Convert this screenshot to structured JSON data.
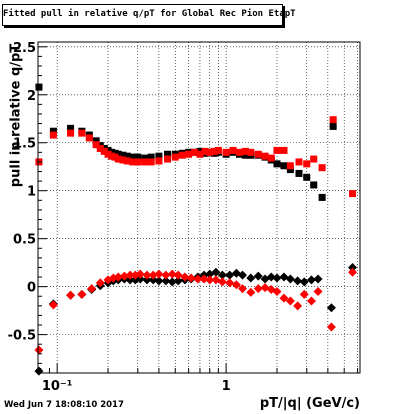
{
  "title": "Fitted pull in relative q/pT for Global Rec Pion EtapT",
  "footer": "Wed Jun  7 18:08:10 2017",
  "chart_data": {
    "type": "scatter",
    "title": "Fitted pull in relative q/pT for Global Rec Pion EtapT",
    "xlabel": "pT/|q| (GeV/c)",
    "ylabel": "pull in relative q/pT",
    "xscale": "log",
    "xlim": [
      0.077,
      6.2
    ],
    "ylim": [
      -0.9,
      2.55
    ],
    "grid": true,
    "xtick_labels": [
      "10⁻¹",
      "1"
    ],
    "ytick_labels": [
      "-0.5",
      "0",
      "0.5",
      "1",
      "1.5",
      "2",
      "2.5"
    ],
    "series": [
      {
        "color": "#000000",
        "points": [
          {
            "x": 0.078,
            "y": 2.08
          },
          {
            "x": 0.095,
            "y": 1.62
          },
          {
            "x": 0.12,
            "y": 1.65
          },
          {
            "x": 0.14,
            "y": 1.62
          },
          {
            "x": 0.155,
            "y": 1.58
          },
          {
            "x": 0.17,
            "y": 1.52
          },
          {
            "x": 0.18,
            "y": 1.47
          },
          {
            "x": 0.19,
            "y": 1.44
          },
          {
            "x": 0.2,
            "y": 1.42
          },
          {
            "x": 0.21,
            "y": 1.4
          },
          {
            "x": 0.22,
            "y": 1.39
          },
          {
            "x": 0.23,
            "y": 1.38
          },
          {
            "x": 0.245,
            "y": 1.37
          },
          {
            "x": 0.26,
            "y": 1.36
          },
          {
            "x": 0.28,
            "y": 1.35
          },
          {
            "x": 0.3,
            "y": 1.35
          },
          {
            "x": 0.33,
            "y": 1.34
          },
          {
            "x": 0.36,
            "y": 1.35
          },
          {
            "x": 0.4,
            "y": 1.36
          },
          {
            "x": 0.45,
            "y": 1.38
          },
          {
            "x": 0.5,
            "y": 1.38
          },
          {
            "x": 0.55,
            "y": 1.39
          },
          {
            "x": 0.6,
            "y": 1.4
          },
          {
            "x": 0.65,
            "y": 1.4
          },
          {
            "x": 0.7,
            "y": 1.41
          },
          {
            "x": 0.75,
            "y": 1.39
          },
          {
            "x": 0.8,
            "y": 1.4
          },
          {
            "x": 0.85,
            "y": 1.39
          },
          {
            "x": 0.9,
            "y": 1.4
          },
          {
            "x": 1.0,
            "y": 1.38
          },
          {
            "x": 1.1,
            "y": 1.4
          },
          {
            "x": 1.2,
            "y": 1.38
          },
          {
            "x": 1.3,
            "y": 1.37
          },
          {
            "x": 1.4,
            "y": 1.37
          },
          {
            "x": 1.55,
            "y": 1.37
          },
          {
            "x": 1.7,
            "y": 1.35
          },
          {
            "x": 1.85,
            "y": 1.32
          },
          {
            "x": 2.0,
            "y": 1.28
          },
          {
            "x": 2.2,
            "y": 1.26
          },
          {
            "x": 2.4,
            "y": 1.22
          },
          {
            "x": 2.7,
            "y": 1.18
          },
          {
            "x": 3.0,
            "y": 1.14
          },
          {
            "x": 3.3,
            "y": 1.06
          },
          {
            "x": 3.7,
            "y": 0.93
          },
          {
            "x": 4.3,
            "y": 1.67
          }
        ]
      },
      {
        "color": "#ff0000",
        "points": [
          {
            "x": 0.078,
            "y": 1.3
          },
          {
            "x": 0.095,
            "y": 1.58
          },
          {
            "x": 0.12,
            "y": 1.6
          },
          {
            "x": 0.14,
            "y": 1.6
          },
          {
            "x": 0.155,
            "y": 1.55
          },
          {
            "x": 0.17,
            "y": 1.48
          },
          {
            "x": 0.18,
            "y": 1.44
          },
          {
            "x": 0.19,
            "y": 1.41
          },
          {
            "x": 0.2,
            "y": 1.38
          },
          {
            "x": 0.21,
            "y": 1.36
          },
          {
            "x": 0.22,
            "y": 1.35
          },
          {
            "x": 0.23,
            "y": 1.33
          },
          {
            "x": 0.245,
            "y": 1.32
          },
          {
            "x": 0.26,
            "y": 1.31
          },
          {
            "x": 0.28,
            "y": 1.3
          },
          {
            "x": 0.3,
            "y": 1.3
          },
          {
            "x": 0.33,
            "y": 1.3
          },
          {
            "x": 0.36,
            "y": 1.3
          },
          {
            "x": 0.4,
            "y": 1.31
          },
          {
            "x": 0.45,
            "y": 1.33
          },
          {
            "x": 0.5,
            "y": 1.35
          },
          {
            "x": 0.55,
            "y": 1.37
          },
          {
            "x": 0.6,
            "y": 1.38
          },
          {
            "x": 0.65,
            "y": 1.4
          },
          {
            "x": 0.7,
            "y": 1.38
          },
          {
            "x": 0.75,
            "y": 1.41
          },
          {
            "x": 0.8,
            "y": 1.4
          },
          {
            "x": 0.85,
            "y": 1.41
          },
          {
            "x": 0.9,
            "y": 1.42
          },
          {
            "x": 1.0,
            "y": 1.4
          },
          {
            "x": 1.1,
            "y": 1.42
          },
          {
            "x": 1.2,
            "y": 1.4
          },
          {
            "x": 1.3,
            "y": 1.41
          },
          {
            "x": 1.4,
            "y": 1.4
          },
          {
            "x": 1.55,
            "y": 1.38
          },
          {
            "x": 1.7,
            "y": 1.36
          },
          {
            "x": 1.85,
            "y": 1.34
          },
          {
            "x": 2.0,
            "y": 1.42
          },
          {
            "x": 2.2,
            "y": 1.42
          },
          {
            "x": 2.4,
            "y": 1.26
          },
          {
            "x": 2.7,
            "y": 1.3
          },
          {
            "x": 3.0,
            "y": 1.28
          },
          {
            "x": 3.3,
            "y": 1.33
          },
          {
            "x": 3.7,
            "y": 1.24
          },
          {
            "x": 4.3,
            "y": 1.74
          },
          {
            "x": 5.6,
            "y": 0.97
          }
        ]
      },
      {
        "color": "#000000",
        "points": [
          {
            "x": 0.078,
            "y": -0.88
          },
          {
            "x": 0.095,
            "y": -0.18
          },
          {
            "x": 0.12,
            "y": -0.09
          },
          {
            "x": 0.14,
            "y": -0.08
          },
          {
            "x": 0.16,
            "y": -0.03
          },
          {
            "x": 0.18,
            "y": 0.01
          },
          {
            "x": 0.2,
            "y": 0.04
          },
          {
            "x": 0.215,
            "y": 0.06
          },
          {
            "x": 0.23,
            "y": 0.07
          },
          {
            "x": 0.25,
            "y": 0.08
          },
          {
            "x": 0.27,
            "y": 0.07
          },
          {
            "x": 0.29,
            "y": 0.07
          },
          {
            "x": 0.31,
            "y": 0.08
          },
          {
            "x": 0.34,
            "y": 0.07
          },
          {
            "x": 0.37,
            "y": 0.07
          },
          {
            "x": 0.4,
            "y": 0.06
          },
          {
            "x": 0.44,
            "y": 0.06
          },
          {
            "x": 0.48,
            "y": 0.05
          },
          {
            "x": 0.52,
            "y": 0.06
          },
          {
            "x": 0.57,
            "y": 0.07
          },
          {
            "x": 0.62,
            "y": 0.08
          },
          {
            "x": 0.68,
            "y": 0.1
          },
          {
            "x": 0.74,
            "y": 0.12
          },
          {
            "x": 0.8,
            "y": 0.13
          },
          {
            "x": 0.87,
            "y": 0.15
          },
          {
            "x": 0.95,
            "y": 0.12
          },
          {
            "x": 1.05,
            "y": 0.12
          },
          {
            "x": 1.15,
            "y": 0.14
          },
          {
            "x": 1.25,
            "y": 0.12
          },
          {
            "x": 1.4,
            "y": 0.09
          },
          {
            "x": 1.55,
            "y": 0.11
          },
          {
            "x": 1.7,
            "y": 0.08
          },
          {
            "x": 1.85,
            "y": 0.1
          },
          {
            "x": 2.0,
            "y": 0.09
          },
          {
            "x": 2.2,
            "y": 0.1
          },
          {
            "x": 2.4,
            "y": 0.08
          },
          {
            "x": 2.65,
            "y": 0.06
          },
          {
            "x": 2.9,
            "y": 0.05
          },
          {
            "x": 3.2,
            "y": 0.07
          },
          {
            "x": 3.5,
            "y": 0.08
          },
          {
            "x": 4.2,
            "y": -0.22
          },
          {
            "x": 5.6,
            "y": 0.2
          }
        ]
      },
      {
        "color": "#ff0000",
        "points": [
          {
            "x": 0.078,
            "y": -0.66
          },
          {
            "x": 0.095,
            "y": -0.19
          },
          {
            "x": 0.12,
            "y": -0.09
          },
          {
            "x": 0.14,
            "y": -0.08
          },
          {
            "x": 0.16,
            "y": -0.02
          },
          {
            "x": 0.18,
            "y": 0.04
          },
          {
            "x": 0.2,
            "y": 0.07
          },
          {
            "x": 0.215,
            "y": 0.09
          },
          {
            "x": 0.23,
            "y": 0.1
          },
          {
            "x": 0.25,
            "y": 0.11
          },
          {
            "x": 0.27,
            "y": 0.12
          },
          {
            "x": 0.29,
            "y": 0.12
          },
          {
            "x": 0.31,
            "y": 0.13
          },
          {
            "x": 0.34,
            "y": 0.12
          },
          {
            "x": 0.37,
            "y": 0.12
          },
          {
            "x": 0.4,
            "y": 0.13
          },
          {
            "x": 0.44,
            "y": 0.12
          },
          {
            "x": 0.48,
            "y": 0.13
          },
          {
            "x": 0.52,
            "y": 0.12
          },
          {
            "x": 0.57,
            "y": 0.1
          },
          {
            "x": 0.62,
            "y": 0.09
          },
          {
            "x": 0.68,
            "y": 0.08
          },
          {
            "x": 0.74,
            "y": 0.08
          },
          {
            "x": 0.8,
            "y": 0.07
          },
          {
            "x": 0.87,
            "y": 0.07
          },
          {
            "x": 0.95,
            "y": 0.05
          },
          {
            "x": 1.05,
            "y": 0.04
          },
          {
            "x": 1.15,
            "y": 0.02
          },
          {
            "x": 1.25,
            "y": -0.02
          },
          {
            "x": 1.4,
            "y": -0.06
          },
          {
            "x": 1.55,
            "y": -0.02
          },
          {
            "x": 1.7,
            "y": -0.01
          },
          {
            "x": 1.85,
            "y": -0.03
          },
          {
            "x": 2.0,
            "y": -0.05
          },
          {
            "x": 2.2,
            "y": -0.12
          },
          {
            "x": 2.4,
            "y": -0.15
          },
          {
            "x": 2.65,
            "y": -0.2
          },
          {
            "x": 2.9,
            "y": -0.08
          },
          {
            "x": 3.2,
            "y": -0.15
          },
          {
            "x": 3.5,
            "y": -0.05
          },
          {
            "x": 4.2,
            "y": -0.42
          },
          {
            "x": 5.6,
            "y": 0.15
          }
        ]
      }
    ]
  }
}
